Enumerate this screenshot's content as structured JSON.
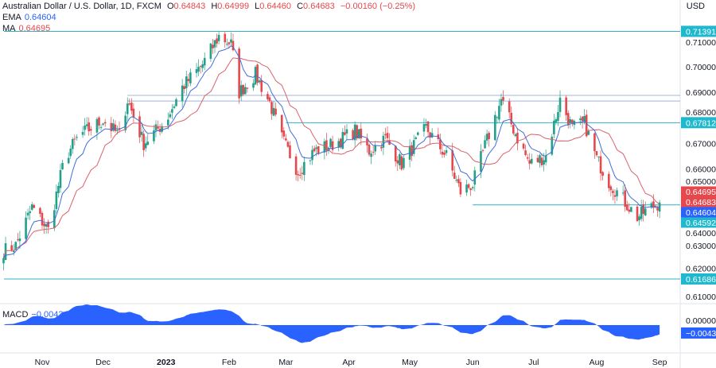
{
  "header": {
    "symbol": "Australian Dollar / U.S. Dollar, 1D, FXCM",
    "open_label": "O",
    "open": "0.64843",
    "high_label": "H",
    "high": "0.64999",
    "low_label": "L",
    "low": "0.64460",
    "close_label": "C",
    "close": "0.64683",
    "change": "−0.00160 (−0.25%)",
    "ema_label": "EMA",
    "ema_value": "0.64604",
    "ma_label": "MA",
    "ma_value": "0.64695",
    "macd_label": "MACD",
    "macd_value": "−0.00434"
  },
  "colors": {
    "up": "#22a08a",
    "down": "#e5484d",
    "ema": "#3f6fd8",
    "ma": "#d9626b",
    "level": "#2fb3c6",
    "macd": "#2962ff"
  },
  "chart_data": {
    "type": "candlestick",
    "currency": "USD",
    "y_ticks": [
      "0.71000",
      "0.70000",
      "0.69000",
      "0.68000",
      "0.67000",
      "0.66000",
      "0.65000",
      "0.64000",
      "0.63000",
      "0.62000",
      "0.61000"
    ],
    "ylim": [
      0.607,
      0.7185
    ],
    "x_ticks": [
      {
        "label": "Nov",
        "date": "2022-11-01"
      },
      {
        "label": "Dec",
        "date": "2022-12-01"
      },
      {
        "label": "2023",
        "date": "2023-01-01"
      },
      {
        "label": "Feb",
        "date": "2023-02-01"
      },
      {
        "label": "Mar",
        "date": "2023-03-01"
      },
      {
        "label": "Apr",
        "date": "2023-04-01"
      },
      {
        "label": "May",
        "date": "2023-05-01"
      },
      {
        "label": "Jun",
        "date": "2023-06-01"
      },
      {
        "label": "Jul",
        "date": "2023-07-01"
      },
      {
        "label": "Aug",
        "date": "2023-08-01"
      },
      {
        "label": "Sep",
        "date": "2023-09-01"
      }
    ],
    "approx_close": [
      [
        "2022-10-13",
        0.628
      ],
      [
        "2022-10-19",
        0.63
      ],
      [
        "2022-10-27",
        0.645
      ],
      [
        "2022-11-04",
        0.636
      ],
      [
        "2022-11-12",
        0.664
      ],
      [
        "2022-11-19",
        0.673
      ],
      [
        "2022-12-01",
        0.679
      ],
      [
        "2022-12-09",
        0.673
      ],
      [
        "2022-12-13",
        0.687
      ],
      [
        "2022-12-21",
        0.67
      ],
      [
        "2023-01-01",
        0.679
      ],
      [
        "2023-01-09",
        0.692
      ],
      [
        "2023-01-19",
        0.701
      ],
      [
        "2023-01-27",
        0.712
      ],
      [
        "2023-02-02",
        0.709
      ],
      [
        "2023-02-06",
        0.69
      ],
      [
        "2023-02-14",
        0.697
      ],
      [
        "2023-02-21",
        0.686
      ],
      [
        "2023-02-27",
        0.672
      ],
      [
        "2023-03-07",
        0.659
      ],
      [
        "2023-03-15",
        0.667
      ],
      [
        "2023-03-25",
        0.67
      ],
      [
        "2023-04-04",
        0.675
      ],
      [
        "2023-04-11",
        0.667
      ],
      [
        "2023-04-19",
        0.672
      ],
      [
        "2023-04-27",
        0.662
      ],
      [
        "2023-05-09",
        0.676
      ],
      [
        "2023-05-19",
        0.665
      ],
      [
        "2023-05-26",
        0.651
      ],
      [
        "2023-06-01",
        0.654
      ],
      [
        "2023-06-07",
        0.669
      ],
      [
        "2023-06-15",
        0.687
      ],
      [
        "2023-06-23",
        0.672
      ],
      [
        "2023-06-29",
        0.662
      ],
      [
        "2023-07-07",
        0.665
      ],
      [
        "2023-07-14",
        0.687
      ],
      [
        "2023-07-20",
        0.676
      ],
      [
        "2023-07-26",
        0.678
      ],
      [
        "2023-08-01",
        0.664
      ],
      [
        "2023-08-07",
        0.655
      ],
      [
        "2023-08-15",
        0.647
      ],
      [
        "2023-08-21",
        0.641
      ],
      [
        "2023-08-26",
        0.644
      ],
      [
        "2023-09-01",
        0.6468
      ]
    ],
    "levels": [
      {
        "value": 0.71391,
        "label": "0.71391",
        "from": "2022-10-01"
      },
      {
        "value": 0.67812,
        "label": "0.67812",
        "from": "2023-03-01"
      },
      {
        "value": 0.64592,
        "label": "0.64592",
        "from": "2023-06-01"
      },
      {
        "value": 0.61686,
        "label": "0.61686",
        "from": "2022-10-01"
      },
      {
        "value": 0.6888,
        "label": "",
        "from": "2022-12-13"
      },
      {
        "value": 0.6866,
        "label": "",
        "from": "2022-12-13"
      }
    ],
    "price_tags": [
      {
        "label": "0.64695",
        "color": "#e5484d"
      },
      {
        "label": "0.64683",
        "color": "#e5484d"
      },
      {
        "label": "0.64604",
        "color": "#2962ff"
      },
      {
        "label": "0.64592",
        "color": "#1fb8cd"
      }
    ],
    "macd_ticks": [
      "0.00000"
    ],
    "macd_tag": "−0.00434"
  }
}
